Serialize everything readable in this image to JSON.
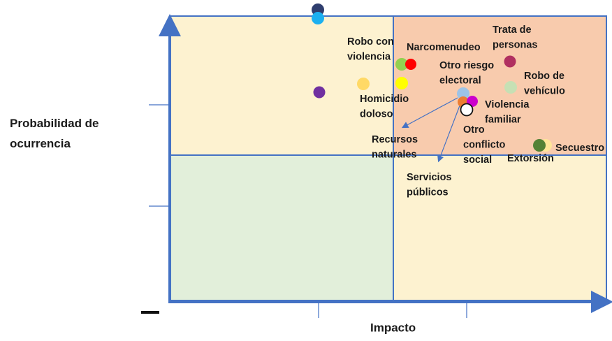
{
  "axes": {
    "y_label": [
      "Probabilidad de",
      "ocurrencia"
    ],
    "x_label": "Impacto"
  },
  "risks": [
    {
      "label": [
        "Robo con",
        "violencia"
      ]
    },
    {
      "label": [
        "Narcomenudeo"
      ]
    },
    {
      "label": [
        "Trata de",
        "personas"
      ]
    },
    {
      "label": [
        "Otro riesgo",
        "electoral"
      ]
    },
    {
      "label": [
        "Robo de",
        "vehículo"
      ]
    },
    {
      "label": [
        "Homicidio",
        "doloso"
      ]
    },
    {
      "label": [
        "Violencia",
        "familiar"
      ]
    },
    {
      "label": [
        "Recursos",
        "naturales"
      ]
    },
    {
      "label": [
        "Otro",
        "conflicto",
        "social"
      ]
    },
    {
      "label": [
        "Extorsión"
      ]
    },
    {
      "label": [
        "Secuestro"
      ]
    },
    {
      "label": [
        "Servicios",
        "públicos"
      ]
    }
  ]
}
